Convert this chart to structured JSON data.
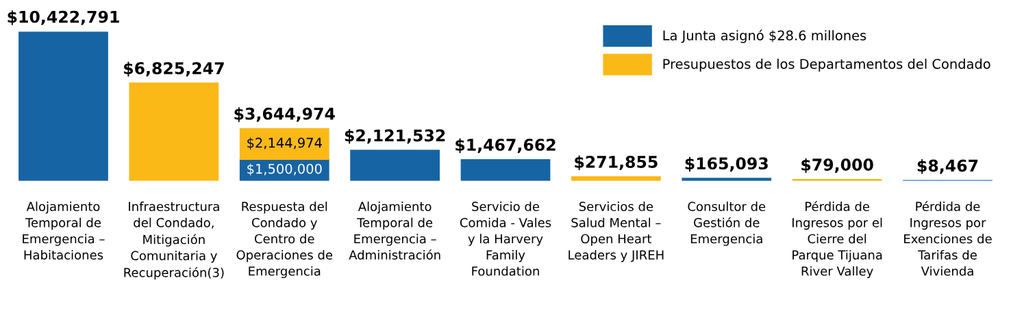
{
  "chart_data": {
    "type": "bar",
    "stacked": true,
    "data_labels": false,
    "legend": "top right",
    "categories": [
      "Alojamiento\nTemporal de\nEmergencia –\nHabitaciones",
      "Infraestructura\ndel Condado,\nMitigación\nComunitaria y\nRecuperación(3)",
      "Respuesta del\nCondado y\nCentro de\nOperaciones de\nEmergencia",
      "Alojamiento\nTemporal de\nEmergencia –\nAdministración",
      "Servicio de\nComida - Vales\ny la Harvery\nFamily\nFoundation",
      "Servicios de\nSalud Mental –\nOpen Heart\nLeaders y JIREH",
      "Consultor de\nGestión de\nEmergencia",
      "Pérdida de\nIngresos por el\nCierre del\nParque Tijuana\nRiver Valley",
      "Pérdida de\nIngresos por\nExenciones de\nTarifas de\nVivienda"
    ],
    "series": [
      {
        "name": "La Junta asignó $28.6 millones",
        "color": "#1764a4",
        "values": [
          10422791,
          null,
          1500000,
          2121532,
          1467662,
          null,
          165093,
          null,
          8467
        ],
        "value_labels": [
          null,
          null,
          "$1,500,000",
          null,
          null,
          null,
          null,
          null,
          null
        ]
      },
      {
        "name": "Presupuestos de los Departamentos del Condado",
        "color": "#fbb918",
        "values": [
          null,
          6825247,
          2144974,
          null,
          null,
          271855,
          null,
          79000,
          null
        ],
        "value_labels": [
          null,
          null,
          "$2,144,974",
          null,
          null,
          null,
          null,
          null,
          null
        ]
      }
    ],
    "totals": [
      "$10,422,791",
      "$6,825,247",
      "$3,644,974",
      "$2,121,532",
      "$1,467,662",
      "$271,855",
      "$165,093",
      "$79,000",
      "$8,467"
    ],
    "grid": false
  }
}
